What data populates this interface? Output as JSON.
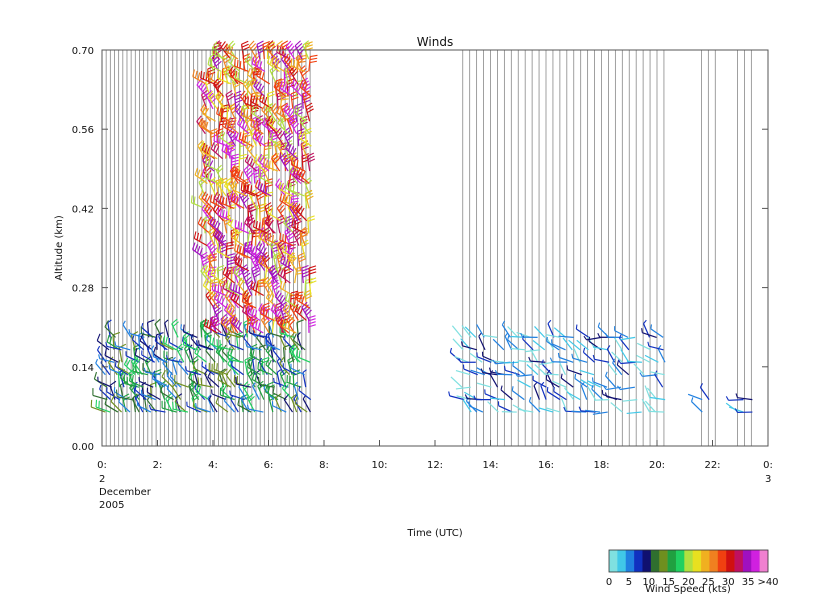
{
  "chart_data": {
    "type": "scatter",
    "title": "Winds",
    "xlabel": "Time (UTC)",
    "ylabel": "Altitude (km)",
    "xlim": [
      0,
      24
    ],
    "ylim": [
      0,
      0.7
    ],
    "x_ticks": [
      {
        "value": 0,
        "label": "0:"
      },
      {
        "value": 2,
        "label": "2:"
      },
      {
        "value": 4,
        "label": "4:"
      },
      {
        "value": 6,
        "label": "6:"
      },
      {
        "value": 8,
        "label": "8:"
      },
      {
        "value": 10,
        "label": "10:"
      },
      {
        "value": 12,
        "label": "12:"
      },
      {
        "value": 14,
        "label": "14:"
      },
      {
        "value": 16,
        "label": "16:"
      },
      {
        "value": 18,
        "label": "18:"
      },
      {
        "value": 20,
        "label": "20:"
      },
      {
        "value": 22,
        "label": "22:"
      },
      {
        "value": 24,
        "label": "0:"
      }
    ],
    "date_start_lines": [
      "2",
      "December",
      "2005"
    ],
    "date_end_lines": [
      "3"
    ],
    "y_ticks": [
      {
        "value": 0.0,
        "label": "0.00"
      },
      {
        "value": 0.14,
        "label": "0.14"
      },
      {
        "value": 0.28,
        "label": "0.28"
      },
      {
        "value": 0.42,
        "label": "0.42"
      },
      {
        "value": 0.56,
        "label": "0.56"
      },
      {
        "value": 0.7,
        "label": "0.70"
      }
    ],
    "profile_times": [
      0.15,
      0.3,
      0.45,
      0.6,
      0.75,
      0.9,
      1.05,
      1.2,
      1.35,
      1.5,
      1.65,
      1.8,
      1.95,
      2.1,
      2.25,
      2.4,
      2.55,
      2.7,
      2.85,
      3.0,
      3.15,
      3.3,
      3.45,
      3.6,
      3.75,
      3.9,
      4.05,
      4.2,
      4.35,
      4.5,
      4.65,
      4.8,
      4.95,
      5.1,
      5.25,
      5.4,
      5.55,
      5.7,
      5.85,
      6.0,
      6.15,
      6.3,
      6.45,
      6.6,
      6.75,
      6.9,
      7.05,
      7.2,
      7.35,
      7.5,
      13.0,
      13.25,
      13.5,
      13.75,
      14.0,
      14.25,
      14.5,
      14.75,
      15.0,
      15.25,
      15.5,
      15.75,
      16.0,
      16.25,
      16.5,
      16.75,
      17.0,
      17.25,
      17.5,
      17.75,
      18.0,
      18.25,
      18.5,
      18.75,
      19.0,
      19.25,
      19.5,
      19.75,
      20.0,
      20.25,
      21.6,
      21.85,
      22.1,
      22.9,
      23.15,
      23.4
    ],
    "wind_groups": [
      {
        "t0": 0.0,
        "t1": 7.6,
        "h0": 0.06,
        "h1": 0.2,
        "speed_min": 5,
        "speed_max": 20,
        "direction_deg": 320
      },
      {
        "t0": 3.7,
        "t1": 7.9,
        "h0": 0.2,
        "h1": 0.7,
        "speed_min": 20,
        "speed_max": 40,
        "direction_deg": 330
      },
      {
        "t0": 13.0,
        "t1": 20.4,
        "h0": 0.06,
        "h1": 0.2,
        "speed_min": 0,
        "speed_max": 10,
        "direction_deg": 300
      },
      {
        "t0": 21.6,
        "t1": 23.6,
        "h0": 0.06,
        "h1": 0.1,
        "speed_min": 0,
        "speed_max": 10,
        "direction_deg": 300
      }
    ],
    "legend": {
      "title": "Wind Speed (kts)",
      "colors": [
        "#7fe0e0",
        "#40c8e8",
        "#2080e0",
        "#1030c0",
        "#101070",
        "#2f6f2f",
        "#6f8f1f",
        "#20a040",
        "#20d060",
        "#b0e040",
        "#e8e020",
        "#f0b020",
        "#f08020",
        "#f04010",
        "#d01010",
        "#c01060",
        "#a010c0",
        "#d020e0",
        "#f080d0"
      ],
      "labels": [
        "0",
        "5",
        "10",
        "15",
        "20",
        "25",
        "30",
        "35",
        ">40"
      ]
    }
  }
}
